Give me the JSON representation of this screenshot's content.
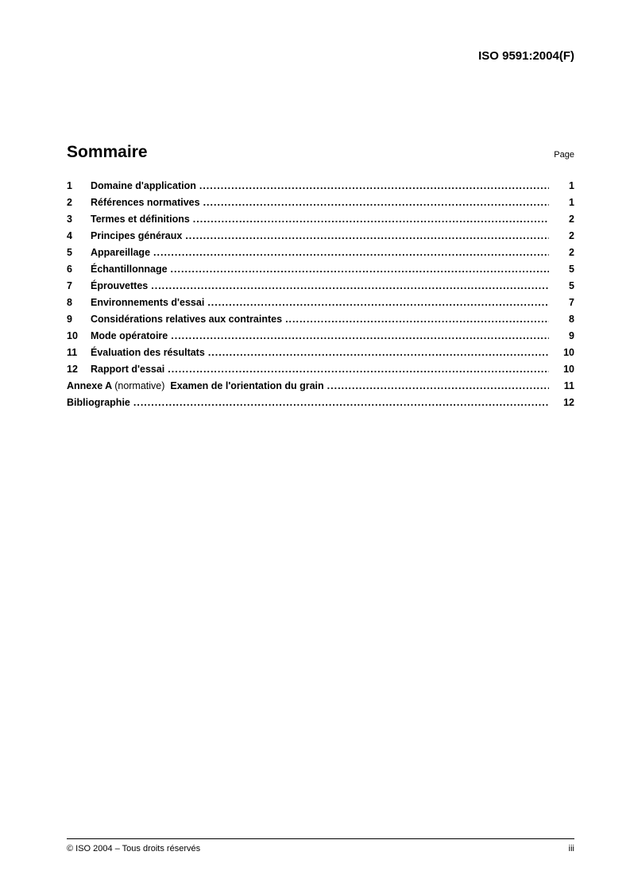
{
  "doc_id": "ISO 9591:2004(F)",
  "heading": "Sommaire",
  "page_label": "Page",
  "toc": [
    {
      "num": "1",
      "title_html": "Domaine d'application",
      "page": "1"
    },
    {
      "num": "2",
      "title_html": "Références normatives",
      "page": "1"
    },
    {
      "num": "3",
      "title_html": "Termes et définitions",
      "page": "2"
    },
    {
      "num": "4",
      "title_html": "Principes généraux",
      "page": "2"
    },
    {
      "num": "5",
      "title_html": "Appareillage",
      "page": "2"
    },
    {
      "num": "6",
      "title_html": "Échantillonnage",
      "page": "5"
    },
    {
      "num": "7",
      "title_html": "Éprouvettes",
      "page": "5"
    },
    {
      "num": "8",
      "title_html": "Environnements d'essai",
      "page": "7"
    },
    {
      "num": "9",
      "title_html": "Considérations relatives aux contraintes",
      "page": "8"
    },
    {
      "num": "10",
      "title_html": "Mode opératoire",
      "page": "9"
    },
    {
      "num": "11",
      "title_html": "Évaluation des résultats",
      "page": "10"
    },
    {
      "num": "12",
      "title_html": "Rapport d'essai",
      "page": "10"
    },
    {
      "num": "",
      "title_html": "Annexe A <span class=\"normal\">(normative)</span>&nbsp; Examen de l'orientation du grain",
      "page": "11"
    },
    {
      "num": "",
      "title_html": "Bibliographie",
      "page": "12"
    }
  ],
  "footer_left": "© ISO 2004 – Tous droits réservés",
  "footer_right": "iii",
  "colors": {
    "text": "#000000",
    "background": "#ffffff",
    "rule": "#000000"
  },
  "fonts": {
    "family": "Arial",
    "heading_size_pt": 16,
    "body_size_pt": 9.5,
    "small_size_pt": 8
  }
}
